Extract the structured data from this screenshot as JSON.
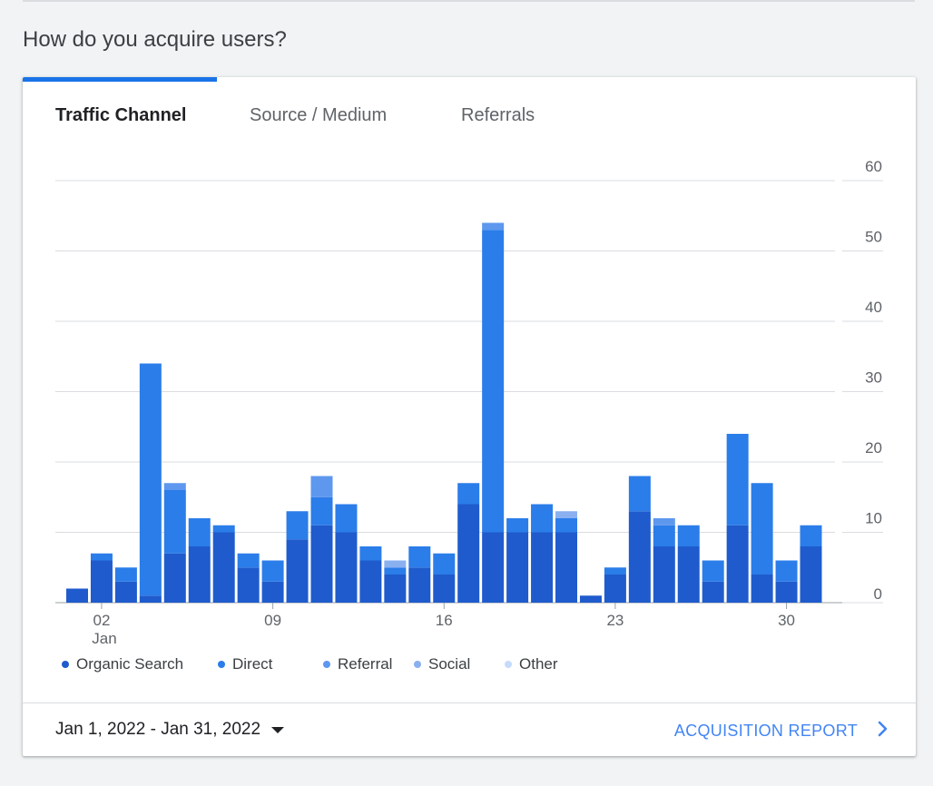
{
  "page": {
    "question": "How do you acquire users?"
  },
  "tabs": [
    {
      "label": "Traffic Channel",
      "active": true
    },
    {
      "label": "Source / Medium",
      "active": false
    },
    {
      "label": "Referrals",
      "active": false
    }
  ],
  "footer": {
    "date_range": "Jan 1, 2022 - Jan 31, 2022",
    "report_link": "ACQUISITION REPORT"
  },
  "colors": {
    "accent": "#1a73e8",
    "organic_search": "#1f5bcc",
    "direct": "#2b7de9",
    "referral": "#5e97ee",
    "social": "#8ab0f0",
    "other": "#c6dafc"
  },
  "chart_data": {
    "type": "bar",
    "stacked": true,
    "categories": [
      "Jan 1",
      "Jan 2",
      "Jan 3",
      "Jan 4",
      "Jan 5",
      "Jan 6",
      "Jan 7",
      "Jan 8",
      "Jan 9",
      "Jan 10",
      "Jan 11",
      "Jan 12",
      "Jan 13",
      "Jan 14",
      "Jan 15",
      "Jan 16",
      "Jan 17",
      "Jan 18",
      "Jan 19",
      "Jan 20",
      "Jan 21",
      "Jan 22",
      "Jan 23",
      "Jan 24",
      "Jan 25",
      "Jan 26",
      "Jan 27",
      "Jan 28",
      "Jan 29",
      "Jan 30",
      "Jan 31"
    ],
    "x_tick_labels": [
      {
        "index": 1,
        "label": "02",
        "sublabel": "Jan"
      },
      {
        "index": 8,
        "label": "09",
        "sublabel": ""
      },
      {
        "index": 15,
        "label": "16",
        "sublabel": ""
      },
      {
        "index": 22,
        "label": "23",
        "sublabel": ""
      },
      {
        "index": 29,
        "label": "30",
        "sublabel": ""
      }
    ],
    "y_ticks": [
      "0",
      "10",
      "20",
      "30",
      "40",
      "50",
      "60"
    ],
    "ylim": [
      0,
      60
    ],
    "y_axis_position": "right",
    "grid": true,
    "legend_position": "bottom",
    "series": [
      {
        "name": "Organic Search",
        "color": "#1f5bcc",
        "values": [
          2,
          6,
          3,
          1,
          7,
          8,
          10,
          5,
          3,
          9,
          11,
          10,
          6,
          4,
          5,
          4,
          14,
          10,
          10,
          10,
          10,
          1,
          4,
          13,
          8,
          8,
          3,
          11,
          4,
          3,
          8
        ]
      },
      {
        "name": "Direct",
        "color": "#2b7de9",
        "values": [
          0,
          1,
          2,
          33,
          9,
          4,
          1,
          2,
          3,
          4,
          4,
          4,
          2,
          1,
          3,
          3,
          3,
          43,
          2,
          4,
          2,
          0,
          1,
          5,
          3,
          3,
          3,
          13,
          13,
          3,
          3
        ]
      },
      {
        "name": "Referral",
        "color": "#5e97ee",
        "values": [
          0,
          0,
          0,
          0,
          1,
          0,
          0,
          0,
          0,
          0,
          3,
          0,
          0,
          0,
          0,
          0,
          0,
          1,
          0,
          0,
          0,
          0,
          0,
          0,
          1,
          0,
          0,
          0,
          0,
          0,
          0
        ]
      },
      {
        "name": "Social",
        "color": "#8ab0f0",
        "values": [
          0,
          0,
          0,
          0,
          0,
          0,
          0,
          0,
          0,
          0,
          0,
          0,
          0,
          1,
          0,
          0,
          0,
          0,
          0,
          0,
          1,
          0,
          0,
          0,
          0,
          0,
          0,
          0,
          0,
          0,
          0
        ]
      },
      {
        "name": "Other",
        "color": "#c6dafc",
        "values": [
          0,
          0,
          0,
          0,
          0,
          0,
          0,
          0,
          0,
          0,
          0,
          0,
          0,
          0,
          0,
          0,
          0,
          0,
          0,
          0,
          0,
          0,
          0,
          0,
          0,
          0,
          0,
          0,
          0,
          0,
          0
        ]
      }
    ]
  }
}
